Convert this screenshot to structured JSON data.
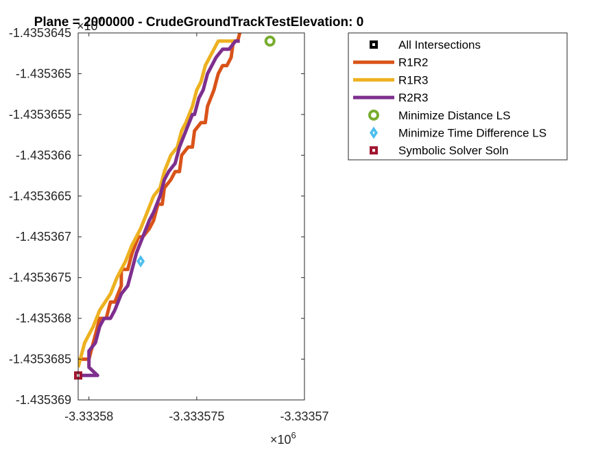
{
  "chart_data": {
    "type": "line",
    "title": "Plane = 2000000 - CrudeGroundTrackTestElevation: 0",
    "xlabel": "",
    "ylabel": "",
    "xlim": [
      -3.3335805,
      -3.33357
    ],
    "ylim": [
      -1.435369,
      -1.4353645
    ],
    "x_exponent_label": "×10",
    "x_exponent_power": "6",
    "y_exponent_label": "×10",
    "y_exponent_power": "7",
    "x_ticks": [
      {
        "value": -3.33358,
        "label": "-3.33358"
      },
      {
        "value": -3.333575,
        "label": "-3.333575"
      },
      {
        "value": -3.33357,
        "label": "-3.33357"
      }
    ],
    "y_ticks": [
      {
        "value": -1.4353645,
        "label": "-1.4353645"
      },
      {
        "value": -1.435365,
        "label": "-1.435365"
      },
      {
        "value": -1.4353655,
        "label": "-1.4353655"
      },
      {
        "value": -1.435366,
        "label": "-1.435366"
      },
      {
        "value": -1.4353665,
        "label": "-1.4353665"
      },
      {
        "value": -1.435367,
        "label": "-1.435367"
      },
      {
        "value": -1.4353675,
        "label": "-1.4353675"
      },
      {
        "value": -1.435368,
        "label": "-1.435368"
      },
      {
        "value": -1.4353685,
        "label": "-1.4353685"
      },
      {
        "value": -1.435369,
        "label": "-1.435369"
      }
    ],
    "grid": false,
    "legend_position": "top-right outside",
    "series": [
      {
        "name": "All Intersections",
        "kind": "marker",
        "marker": "square",
        "color": "#000000",
        "points": []
      },
      {
        "name": "R1R2",
        "kind": "line",
        "color": "#D95319",
        "points": [
          [
            -3.3335805,
            -1.4353685
          ],
          [
            -3.33358,
            -1.4353685
          ],
          [
            -3.3335798,
            -1.4353683
          ],
          [
            -3.3335795,
            -1.435368
          ],
          [
            -3.3335792,
            -1.435368
          ],
          [
            -3.333579,
            -1.4353678
          ],
          [
            -3.3335788,
            -1.4353678
          ],
          [
            -3.3335785,
            -1.4353676
          ],
          [
            -3.3335785,
            -1.4353674
          ],
          [
            -3.3335782,
            -1.4353674
          ],
          [
            -3.333578,
            -1.4353672
          ],
          [
            -3.3335777,
            -1.435367
          ],
          [
            -3.3335775,
            -1.435367
          ],
          [
            -3.3335772,
            -1.4353669
          ],
          [
            -3.333577,
            -1.4353668
          ],
          [
            -3.3335768,
            -1.4353666
          ],
          [
            -3.3335766,
            -1.4353666
          ],
          [
            -3.3335765,
            -1.4353664
          ],
          [
            -3.3335762,
            -1.4353663
          ],
          [
            -3.333576,
            -1.4353662
          ],
          [
            -3.3335758,
            -1.4353662
          ],
          [
            -3.3335757,
            -1.435366
          ],
          [
            -3.3335754,
            -1.4353659
          ],
          [
            -3.3335752,
            -1.4353659
          ],
          [
            -3.3335751,
            -1.4353657
          ],
          [
            -3.3335748,
            -1.4353656
          ],
          [
            -3.3335746,
            -1.4353656
          ],
          [
            -3.3335745,
            -1.4353654
          ],
          [
            -3.3335742,
            -1.4353652
          ],
          [
            -3.3335741,
            -1.4353651
          ],
          [
            -3.333574,
            -1.435365
          ],
          [
            -3.3335738,
            -1.4353649
          ],
          [
            -3.3335736,
            -1.4353649
          ],
          [
            -3.3335734,
            -1.4353648
          ],
          [
            -3.3335733,
            -1.4353646
          ],
          [
            -3.3335731,
            -1.4353646
          ],
          [
            -3.333573,
            -1.4353645
          ]
        ]
      },
      {
        "name": "R1R3",
        "kind": "line",
        "color": "#EDB120",
        "points": [
          [
            -3.3335805,
            -1.4353686
          ],
          [
            -3.3335802,
            -1.4353683
          ],
          [
            -3.3335798,
            -1.4353681
          ],
          [
            -3.3335795,
            -1.4353679
          ],
          [
            -3.333579,
            -1.4353677
          ],
          [
            -3.3335787,
            -1.4353675
          ],
          [
            -3.3335783,
            -1.4353673
          ],
          [
            -3.333578,
            -1.4353671
          ],
          [
            -3.3335776,
            -1.4353669
          ],
          [
            -3.3335773,
            -1.4353667
          ],
          [
            -3.333577,
            -1.4353665
          ],
          [
            -3.3335767,
            -1.4353664
          ],
          [
            -3.3335765,
            -1.4353662
          ],
          [
            -3.3335762,
            -1.435366
          ],
          [
            -3.3335759,
            -1.4353659
          ],
          [
            -3.3335757,
            -1.4353657
          ],
          [
            -3.3335755,
            -1.4353656
          ],
          [
            -3.3335752,
            -1.4353654
          ],
          [
            -3.333575,
            -1.4353652
          ],
          [
            -3.3335748,
            -1.4353651
          ],
          [
            -3.3335746,
            -1.4353649
          ],
          [
            -3.3335744,
            -1.4353648
          ],
          [
            -3.3335742,
            -1.4353647
          ],
          [
            -3.333574,
            -1.4353646
          ],
          [
            -3.3335738,
            -1.4353646
          ],
          [
            -3.3335735,
            -1.4353646
          ],
          [
            -3.3335732,
            -1.4353646
          ],
          [
            -3.333573,
            -1.4353646
          ]
        ]
      },
      {
        "name": "R2R3",
        "kind": "line",
        "color": "#7E2F8E",
        "points": [
          [
            -3.3335805,
            -1.4353687
          ],
          [
            -3.3335796,
            -1.4353687
          ],
          [
            -3.33358,
            -1.4353686
          ],
          [
            -3.33358,
            -1.4353684
          ],
          [
            -3.3335797,
            -1.4353683
          ],
          [
            -3.3335795,
            -1.4353681
          ],
          [
            -3.3335793,
            -1.435368
          ],
          [
            -3.333579,
            -1.435368
          ],
          [
            -3.3335788,
            -1.4353679
          ],
          [
            -3.3335785,
            -1.4353677
          ],
          [
            -3.3335782,
            -1.4353676
          ],
          [
            -3.333578,
            -1.4353674
          ],
          [
            -3.3335778,
            -1.4353672
          ],
          [
            -3.3335775,
            -1.435367
          ],
          [
            -3.3335772,
            -1.4353668
          ],
          [
            -3.333577,
            -1.4353667
          ],
          [
            -3.3335767,
            -1.4353665
          ],
          [
            -3.3335765,
            -1.4353663
          ],
          [
            -3.3335763,
            -1.4353662
          ],
          [
            -3.333576,
            -1.4353661
          ],
          [
            -3.3335758,
            -1.4353659
          ],
          [
            -3.3335755,
            -1.4353657
          ],
          [
            -3.3335752,
            -1.4353655
          ],
          [
            -3.3335751,
            -1.4353655
          ],
          [
            -3.3335749,
            -1.4353653
          ],
          [
            -3.3335747,
            -1.4353652
          ],
          [
            -3.3335745,
            -1.435365
          ],
          [
            -3.3335743,
            -1.4353649
          ],
          [
            -3.3335741,
            -1.4353648
          ],
          [
            -3.3335738,
            -1.4353647
          ],
          [
            -3.3335735,
            -1.4353647
          ],
          [
            -3.3335732,
            -1.4353646
          ],
          [
            -3.333573,
            -1.4353646
          ]
        ]
      },
      {
        "name": "Minimize Distance LS",
        "kind": "marker",
        "marker": "circle",
        "color": "#77AC30",
        "points": [
          [
            -3.3335716,
            -1.4353646
          ]
        ]
      },
      {
        "name": "Minimize Time Difference LS",
        "kind": "marker",
        "marker": "diamond",
        "color": "#4DBEEE",
        "points": [
          [
            -3.3335776,
            -1.4353673
          ]
        ]
      },
      {
        "name": "Symbolic Solver Soln",
        "kind": "marker",
        "marker": "square",
        "color": "#A2142F",
        "points": [
          [
            -3.3335805,
            -1.4353687
          ]
        ]
      }
    ]
  }
}
